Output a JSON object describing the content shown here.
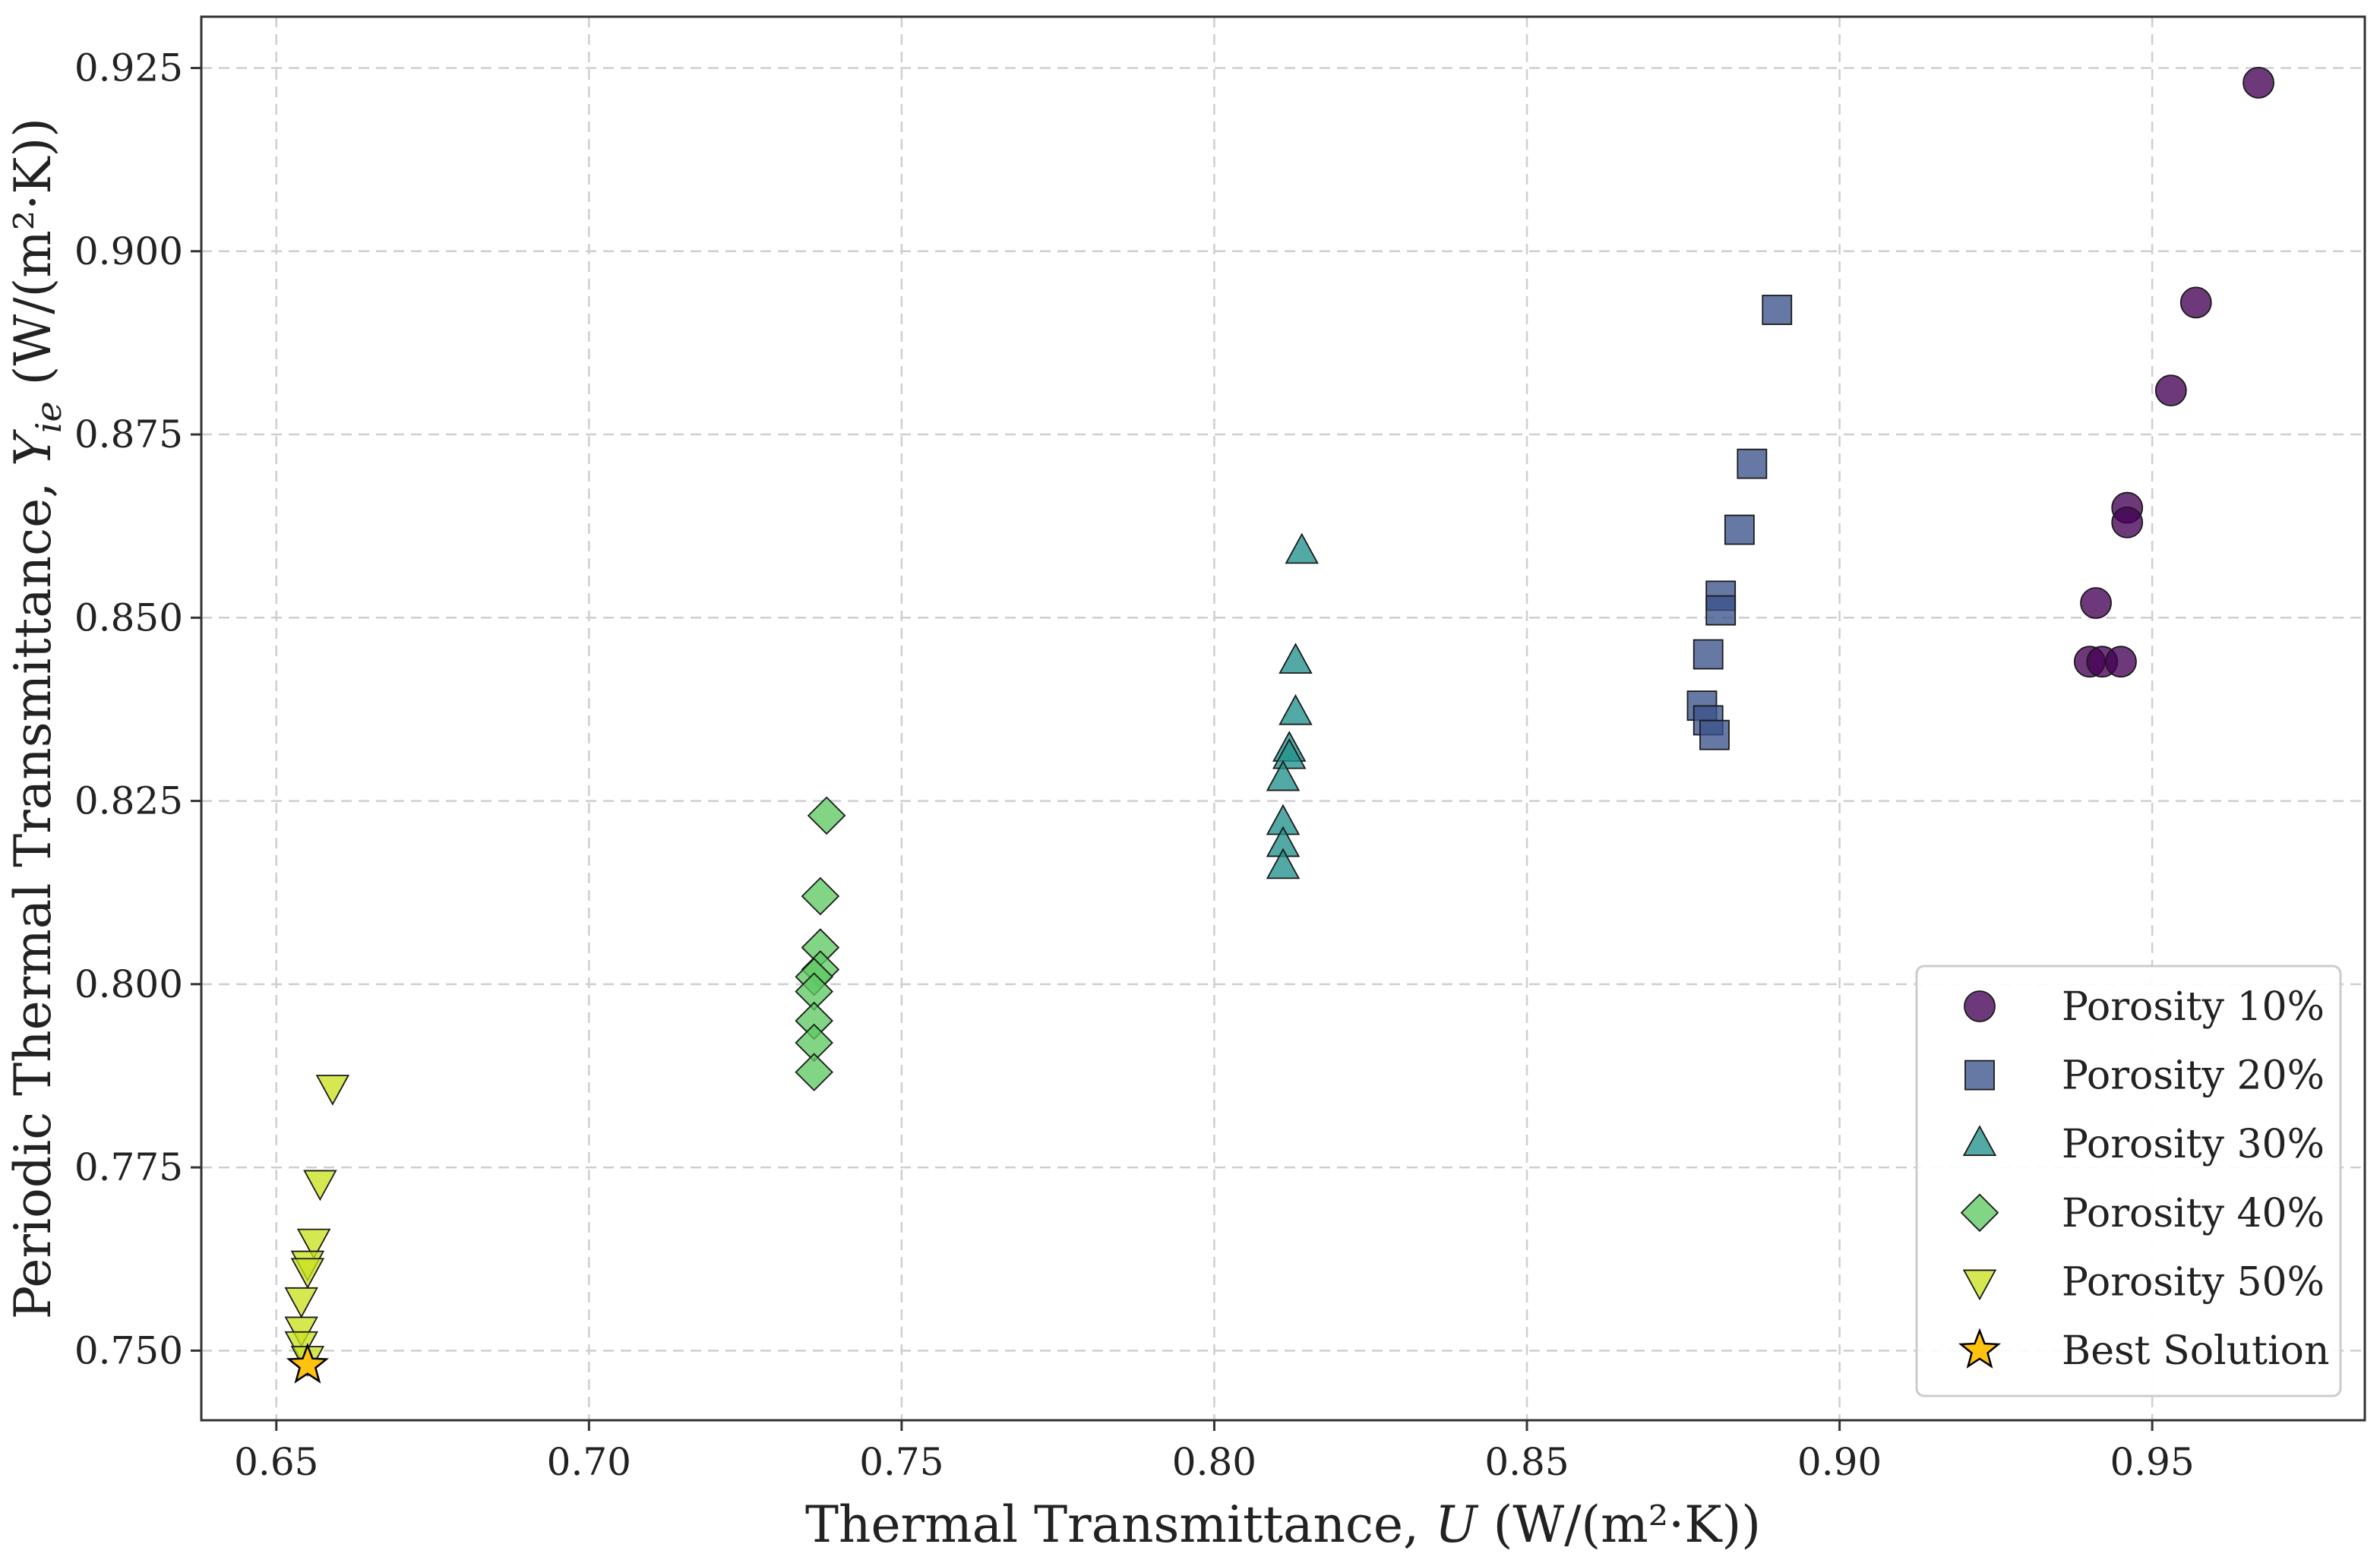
{
  "chart_data": {
    "type": "scatter",
    "title": "",
    "xlabel": "Thermal Transmittance, ",
    "xlabel_var": "U",
    "xlabel_unit": " (W/(m²·K))",
    "ylabel": "Periodic Thermal Transmittance, ",
    "ylabel_var": "Y",
    "ylabel_sub": "ie",
    "ylabel_unit": " (W/(m²·K))",
    "xlim": [
      0.638,
      0.984
    ],
    "ylim": [
      0.7405,
      0.932
    ],
    "xticks": [
      {
        "value": 0.65,
        "label": "0.65"
      },
      {
        "value": 0.7,
        "label": "0.70"
      },
      {
        "value": 0.75,
        "label": "0.75"
      },
      {
        "value": 0.8,
        "label": "0.80"
      },
      {
        "value": 0.85,
        "label": "0.85"
      },
      {
        "value": 0.9,
        "label": "0.90"
      },
      {
        "value": 0.95,
        "label": "0.95"
      }
    ],
    "yticks": [
      {
        "value": 0.75,
        "label": "0.750"
      },
      {
        "value": 0.775,
        "label": "0.775"
      },
      {
        "value": 0.8,
        "label": "0.800"
      },
      {
        "value": 0.825,
        "label": "0.825"
      },
      {
        "value": 0.85,
        "label": "0.850"
      },
      {
        "value": 0.875,
        "label": "0.875"
      },
      {
        "value": 0.9,
        "label": "0.900"
      },
      {
        "value": 0.925,
        "label": "0.925"
      }
    ],
    "grid": true,
    "legend_position": "lower-right",
    "series": [
      {
        "name": "Porosity 10%",
        "marker": "circle",
        "color": "#440154",
        "points": [
          [
            0.967,
            0.923
          ],
          [
            0.957,
            0.893
          ],
          [
            0.953,
            0.881
          ],
          [
            0.946,
            0.865
          ],
          [
            0.946,
            0.863
          ],
          [
            0.941,
            0.852
          ],
          [
            0.94,
            0.844
          ],
          [
            0.942,
            0.844
          ],
          [
            0.945,
            0.844
          ]
        ]
      },
      {
        "name": "Porosity 20%",
        "marker": "square",
        "color": "#3b528b",
        "points": [
          [
            0.89,
            0.892
          ],
          [
            0.886,
            0.871
          ],
          [
            0.884,
            0.862
          ],
          [
            0.881,
            0.853
          ],
          [
            0.881,
            0.851
          ],
          [
            0.879,
            0.845
          ],
          [
            0.878,
            0.838
          ],
          [
            0.879,
            0.836
          ],
          [
            0.88,
            0.834
          ]
        ]
      },
      {
        "name": "Porosity 30%",
        "marker": "triangle-up",
        "color": "#21918c",
        "points": [
          [
            0.814,
            0.859
          ],
          [
            0.813,
            0.844
          ],
          [
            0.813,
            0.837
          ],
          [
            0.812,
            0.832
          ],
          [
            0.812,
            0.831
          ],
          [
            0.811,
            0.828
          ],
          [
            0.811,
            0.822
          ],
          [
            0.811,
            0.819
          ],
          [
            0.811,
            0.816
          ]
        ]
      },
      {
        "name": "Porosity 40%",
        "marker": "diamond",
        "color": "#5ec962",
        "points": [
          [
            0.738,
            0.823
          ],
          [
            0.737,
            0.812
          ],
          [
            0.737,
            0.805
          ],
          [
            0.737,
            0.802
          ],
          [
            0.736,
            0.801
          ],
          [
            0.736,
            0.799
          ],
          [
            0.736,
            0.795
          ],
          [
            0.736,
            0.792
          ],
          [
            0.736,
            0.788
          ]
        ]
      },
      {
        "name": "Porosity 50%",
        "marker": "triangle-down",
        "color": "#c9e020",
        "points": [
          [
            0.659,
            0.786
          ],
          [
            0.657,
            0.773
          ],
          [
            0.656,
            0.765
          ],
          [
            0.655,
            0.762
          ],
          [
            0.655,
            0.761
          ],
          [
            0.654,
            0.757
          ],
          [
            0.654,
            0.753
          ],
          [
            0.654,
            0.751
          ],
          [
            0.655,
            0.749
          ]
        ]
      },
      {
        "name": "Best Solution",
        "marker": "star",
        "color": "#ffc20e",
        "points": [
          [
            0.655,
            0.748
          ]
        ]
      }
    ]
  }
}
